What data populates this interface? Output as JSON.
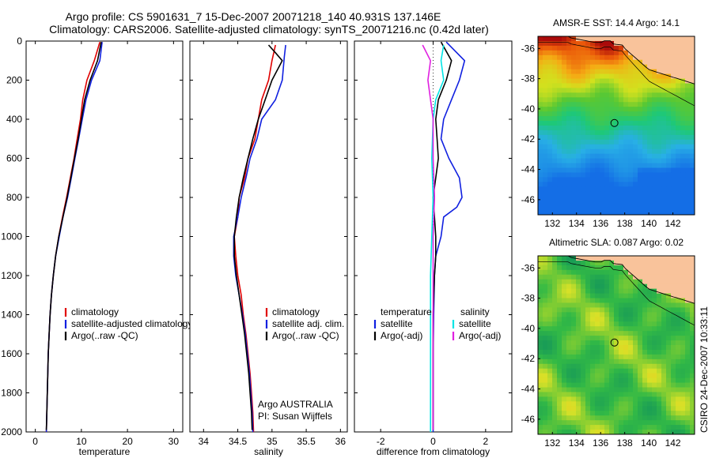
{
  "header": {
    "line1": "Argo profile: CS 5901631_7 15-Dec-2007 20071218_140 40.931S 137.146E",
    "line2": "Climatology: CARS2006. Satellite-adjusted climatology: synTS_20071216.nc (0.42d later)"
  },
  "colors": {
    "climatology": "#e00000",
    "satellite": "#1020e0",
    "argo": "#000000",
    "sat_salinity": "#00e5e5",
    "argo_adj_salinity": "#e020e0"
  },
  "chart_data": [
    {
      "type": "line",
      "xlabel": "temperature",
      "ylabel": "",
      "xlim": [
        -2,
        32
      ],
      "ylim": [
        2000,
        0
      ],
      "x_ticks": [
        0,
        10,
        20,
        30
      ],
      "y_ticks": [
        0,
        200,
        400,
        600,
        800,
        1000,
        1200,
        1400,
        1600,
        1800,
        2000
      ],
      "legend": [
        "climatology",
        "satellite-adjusted climatology",
        "Argo(..raw -QC)"
      ],
      "legend_position": "bottom-right",
      "series": [
        {
          "name": "climatology",
          "color": "#e00000",
          "points": [
            [
              14.0,
              5
            ],
            [
              12.8,
              100
            ],
            [
              11.2,
              200
            ],
            [
              10.3,
              300
            ],
            [
              9.8,
              400
            ],
            [
              9.1,
              500
            ],
            [
              8.4,
              600
            ],
            [
              7.6,
              700
            ],
            [
              6.8,
              800
            ],
            [
              5.9,
              900
            ],
            [
              5.1,
              1000
            ],
            [
              4.4,
              1100
            ],
            [
              3.9,
              1200
            ],
            [
              3.5,
              1300
            ],
            [
              3.2,
              1400
            ],
            [
              3.0,
              1500
            ],
            [
              2.8,
              1600
            ],
            [
              2.7,
              1700
            ],
            [
              2.6,
              1800
            ],
            [
              2.5,
              1900
            ],
            [
              2.4,
              2000
            ]
          ]
        },
        {
          "name": "satellite-adjusted climatology",
          "color": "#1020e0",
          "points": [
            [
              14.5,
              5
            ],
            [
              14.0,
              100
            ],
            [
              12.2,
              200
            ],
            [
              11.0,
              300
            ],
            [
              10.2,
              400
            ],
            [
              9.4,
              500
            ],
            [
              8.6,
              600
            ],
            [
              7.8,
              700
            ],
            [
              7.0,
              800
            ],
            [
              6.0,
              900
            ],
            [
              5.2,
              1000
            ],
            [
              4.4,
              1100
            ],
            [
              3.9,
              1200
            ],
            [
              3.5,
              1300
            ],
            [
              3.2,
              1400
            ],
            [
              3.0,
              1500
            ],
            [
              2.8,
              1600
            ],
            [
              2.7,
              1700
            ],
            [
              2.6,
              1800
            ],
            [
              2.5,
              1900
            ],
            [
              2.4,
              2000
            ]
          ]
        },
        {
          "name": "Argo(..raw -QC)",
          "color": "#000000",
          "points": [
            [
              14.3,
              5
            ],
            [
              13.5,
              100
            ],
            [
              11.9,
              200
            ],
            [
              10.7,
              300
            ],
            [
              10.0,
              400
            ],
            [
              9.3,
              500
            ],
            [
              8.5,
              600
            ],
            [
              7.7,
              700
            ],
            [
              6.9,
              800
            ],
            [
              6.0,
              900
            ],
            [
              5.1,
              1000
            ],
            [
              4.4,
              1100
            ],
            [
              3.9,
              1200
            ],
            [
              3.5,
              1300
            ],
            [
              3.2,
              1400
            ],
            [
              3.0,
              1500
            ],
            [
              2.8,
              1600
            ],
            [
              2.7,
              1700
            ],
            [
              2.6,
              1800
            ],
            [
              2.5,
              1900
            ],
            [
              2.4,
              1990
            ]
          ]
        }
      ]
    },
    {
      "type": "line",
      "xlabel": "salinity",
      "ylabel": "",
      "xlim": [
        33.8,
        36.1
      ],
      "ylim": [
        2000,
        0
      ],
      "x_ticks": [
        34,
        34.5,
        35,
        35.5,
        36
      ],
      "y_ticks": [
        0,
        200,
        400,
        600,
        800,
        1000,
        1200,
        1400,
        1600,
        1800,
        2000
      ],
      "legend": [
        "climatology",
        "satellite adj. clim.",
        "Argo(..raw -QC)"
      ],
      "legend_position": "bottom-right",
      "annotation": [
        "Argo AUSTRALIA",
        "PI: Susan Wijffels"
      ],
      "series": [
        {
          "name": "climatology",
          "color": "#e00000",
          "points": [
            [
              35.05,
              20
            ],
            [
              35.0,
              100
            ],
            [
              34.95,
              200
            ],
            [
              34.85,
              300
            ],
            [
              34.8,
              400
            ],
            [
              34.75,
              500
            ],
            [
              34.65,
              600
            ],
            [
              34.6,
              700
            ],
            [
              34.52,
              800
            ],
            [
              34.5,
              900
            ],
            [
              34.45,
              1000
            ],
            [
              34.47,
              1100
            ],
            [
              34.5,
              1200
            ],
            [
              34.55,
              1300
            ],
            [
              34.58,
              1400
            ],
            [
              34.62,
              1500
            ],
            [
              34.65,
              1600
            ],
            [
              34.68,
              1700
            ],
            [
              34.7,
              1800
            ],
            [
              34.72,
              1900
            ],
            [
              34.73,
              2000
            ]
          ]
        },
        {
          "name": "satellite adj. clim.",
          "color": "#1020e0",
          "points": [
            [
              35.2,
              20
            ],
            [
              35.18,
              80
            ],
            [
              35.15,
              200
            ],
            [
              35.05,
              300
            ],
            [
              34.85,
              400
            ],
            [
              34.78,
              500
            ],
            [
              34.68,
              600
            ],
            [
              34.62,
              700
            ],
            [
              34.55,
              800
            ],
            [
              34.5,
              900
            ],
            [
              34.44,
              1000
            ],
            [
              34.44,
              1100
            ],
            [
              34.47,
              1200
            ],
            [
              34.52,
              1300
            ],
            [
              34.57,
              1400
            ],
            [
              34.61,
              1500
            ],
            [
              34.64,
              1600
            ],
            [
              34.67,
              1700
            ],
            [
              34.69,
              1800
            ],
            [
              34.71,
              1900
            ],
            [
              34.72,
              2000
            ]
          ]
        },
        {
          "name": "Argo(..raw -QC)",
          "color": "#000000",
          "points": [
            [
              34.95,
              20
            ],
            [
              35.05,
              60
            ],
            [
              35.15,
              100
            ],
            [
              35.0,
              200
            ],
            [
              34.9,
              300
            ],
            [
              34.8,
              400
            ],
            [
              34.72,
              500
            ],
            [
              34.65,
              600
            ],
            [
              34.58,
              700
            ],
            [
              34.52,
              800
            ],
            [
              34.48,
              900
            ],
            [
              34.45,
              1000
            ],
            [
              34.45,
              1100
            ],
            [
              34.48,
              1200
            ],
            [
              34.52,
              1300
            ],
            [
              34.56,
              1400
            ],
            [
              34.6,
              1500
            ],
            [
              34.63,
              1600
            ],
            [
              34.66,
              1700
            ],
            [
              34.68,
              1800
            ],
            [
              34.7,
              1900
            ],
            [
              34.71,
              1990
            ]
          ]
        }
      ]
    },
    {
      "type": "line",
      "xlabel": "difference from climatology",
      "ylabel": "",
      "xlim": [
        -3,
        3
      ],
      "ylim": [
        2000,
        0
      ],
      "x_ticks": [
        -2,
        0,
        2
      ],
      "y_ticks": [
        0,
        200,
        400,
        600,
        800,
        1000,
        1200,
        1400,
        1600,
        1800,
        2000
      ],
      "legend_titles": [
        "temperature",
        "salinity"
      ],
      "legend": [
        "satellite",
        "Argo(-adj)",
        "satellite",
        "Argo(-adj)"
      ],
      "legend_position": "bottom",
      "series": [
        {
          "name": "satellite",
          "color": "#1020e0",
          "points": [
            [
              0.5,
              5
            ],
            [
              1.2,
              100
            ],
            [
              1.0,
              200
            ],
            [
              0.7,
              300
            ],
            [
              0.4,
              400
            ],
            [
              0.3,
              500
            ],
            [
              0.6,
              600
            ],
            [
              1.0,
              700
            ],
            [
              1.1,
              800
            ],
            [
              0.9,
              850
            ],
            [
              0.4,
              900
            ],
            [
              0.3,
              1000
            ],
            [
              0.1,
              1100
            ],
            [
              0.05,
              1200
            ],
            [
              0.02,
              1400
            ],
            [
              0.0,
              1600
            ],
            [
              0.0,
              1800
            ],
            [
              0.0,
              2000
            ]
          ]
        },
        {
          "name": "Argo(-adj)",
          "color": "#000000",
          "points": [
            [
              0.3,
              5
            ],
            [
              0.7,
              100
            ],
            [
              0.5,
              200
            ],
            [
              0.2,
              300
            ],
            [
              0.1,
              400
            ],
            [
              0.15,
              500
            ],
            [
              0.2,
              600
            ],
            [
              0.1,
              700
            ],
            [
              0.0,
              800
            ],
            [
              0.05,
              900
            ],
            [
              0.1,
              1000
            ],
            [
              0.1,
              1100
            ],
            [
              0.05,
              1200
            ],
            [
              0.0,
              1400
            ],
            [
              0.0,
              1600
            ],
            [
              0.0,
              1800
            ],
            [
              0.0,
              1990
            ]
          ]
        },
        {
          "name": "satellite",
          "color": "#00e5e5",
          "points": [
            [
              0.4,
              20
            ],
            [
              0.3,
              100
            ],
            [
              0.4,
              200
            ],
            [
              0.1,
              300
            ],
            [
              0.0,
              400
            ],
            [
              -0.05,
              600
            ],
            [
              0.0,
              800
            ],
            [
              -0.05,
              1000
            ],
            [
              -0.1,
              1200
            ],
            [
              -0.1,
              1400
            ],
            [
              -0.1,
              1600
            ],
            [
              -0.1,
              1800
            ],
            [
              -0.1,
              2000
            ]
          ]
        },
        {
          "name": "Argo(-adj)",
          "color": "#e020e0",
          "points": [
            [
              -0.4,
              20
            ],
            [
              -0.1,
              100
            ],
            [
              -0.2,
              200
            ],
            [
              0.0,
              400
            ],
            [
              0.0,
              600
            ],
            [
              0.05,
              800
            ],
            [
              0.0,
              1000
            ],
            [
              0.0,
              1200
            ],
            [
              0.0,
              1400
            ],
            [
              0.0,
              1600
            ],
            [
              0.0,
              1800
            ],
            [
              0.0,
              1990
            ]
          ]
        }
      ]
    },
    {
      "type": "heatmap",
      "title": "AMSR-E SST: 14.4  Argo: 14.1",
      "xlim": [
        130.8,
        143.8
      ],
      "ylim": [
        -47,
        -35.2
      ],
      "x_ticks": [
        132,
        134,
        136,
        138,
        140,
        142
      ],
      "y_ticks": [
        -36,
        -38,
        -40,
        -42,
        -44,
        -46
      ],
      "marker": {
        "lon": 137.146,
        "lat": -40.931
      }
    },
    {
      "type": "heatmap",
      "title": "Altimetric SLA: 0.087  Argo: 0.02",
      "xlim": [
        130.8,
        143.8
      ],
      "ylim": [
        -47,
        -35.2
      ],
      "x_ticks": [
        132,
        134,
        136,
        138,
        140,
        142
      ],
      "y_ticks": [
        -36,
        -38,
        -40,
        -42,
        -44,
        -46
      ],
      "marker": {
        "lon": 137.146,
        "lat": -40.931
      }
    }
  ],
  "side_label": "CSIRO 24-Dec-2007 10:33:11"
}
